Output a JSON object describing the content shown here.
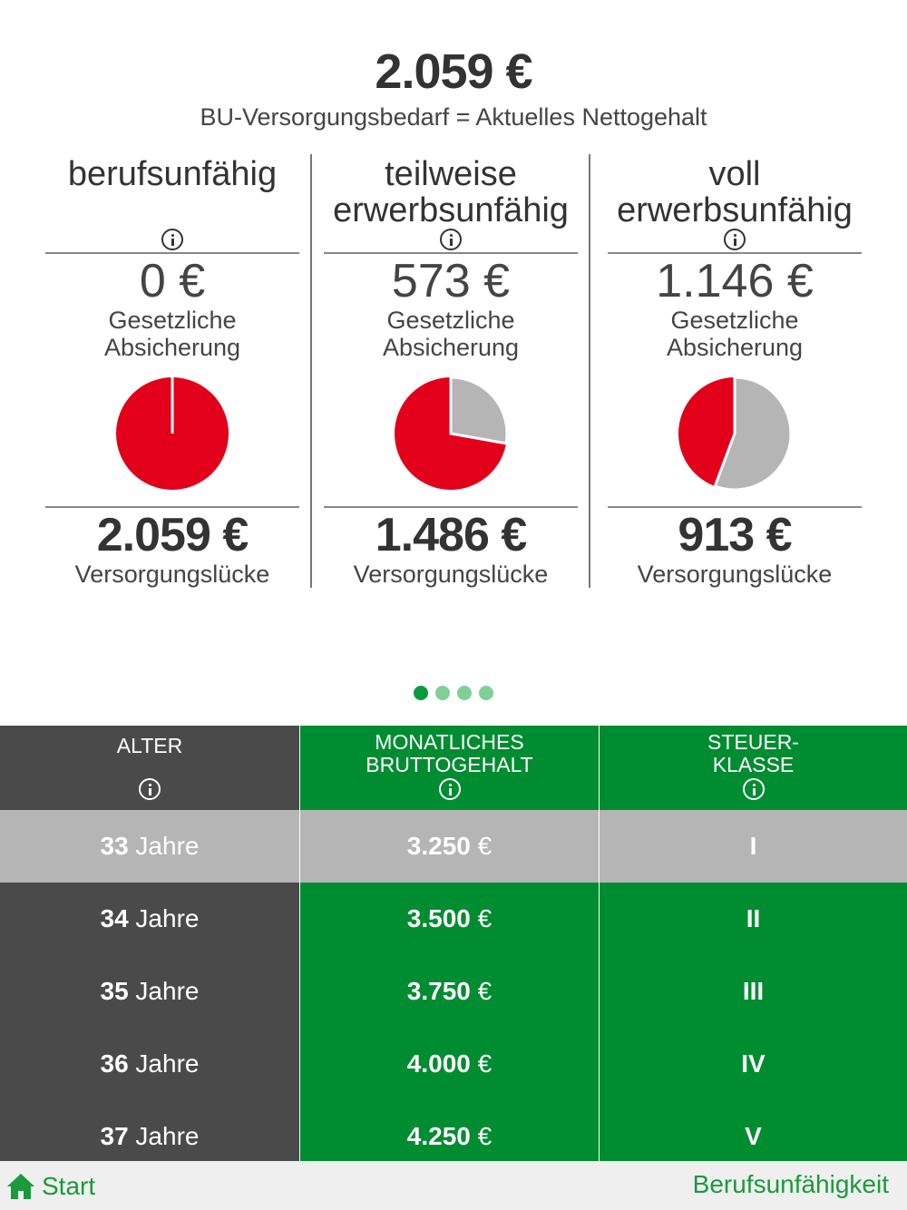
{
  "summary": {
    "total_amount": "2.059 €",
    "total_caption": "BU-Versorgungsbedarf = Aktuelles Nettogehalt"
  },
  "columns": [
    {
      "title": "berufsunfähig",
      "legal_amount": "0 €",
      "legal_caption_1": "Gesetzliche",
      "legal_caption_2": "Absicherung",
      "gap_amount": "2.059 €",
      "gap_caption": "Versorgungslücke",
      "covered_fraction": 0.0
    },
    {
      "title_1": "teilweise",
      "title_2": "erwerbsunfähig",
      "legal_amount": "573 €",
      "legal_caption_1": "Gesetzliche",
      "legal_caption_2": "Absicherung",
      "gap_amount": "1.486 €",
      "gap_caption": "Versorgungslücke",
      "covered_fraction": 0.278
    },
    {
      "title_1": "voll",
      "title_2": "erwerbsunfähig",
      "legal_amount": "1.146 €",
      "legal_caption_1": "Gesetzliche",
      "legal_caption_2": "Absicherung",
      "gap_amount": "913 €",
      "gap_caption": "Versorgungslücke",
      "covered_fraction": 0.557
    }
  ],
  "colors": {
    "gap": "#e2001a",
    "covered": "#b5b5b5",
    "accent_green": "#008c30",
    "dark_gray": "#4a4a4a"
  },
  "pager": {
    "page_count": 4,
    "active_page": 1
  },
  "table": {
    "headers": {
      "age": "ALTER",
      "salary_1": "MONATLICHES",
      "salary_2": "BRUTTOGEHALT",
      "tax_1": "STEUER-",
      "tax_2": "KLASSE"
    },
    "rows": [
      {
        "age_num": "33",
        "age_unit": " Jahre",
        "salary_num": "3.250",
        "salary_unit": " €",
        "tax_class": "I"
      },
      {
        "age_num": "34",
        "age_unit": " Jahre",
        "salary_num": "3.500",
        "salary_unit": " €",
        "tax_class": "II"
      },
      {
        "age_num": "35",
        "age_unit": " Jahre",
        "salary_num": "3.750",
        "salary_unit": " €",
        "tax_class": "III"
      },
      {
        "age_num": "36",
        "age_unit": " Jahre",
        "salary_num": "4.000",
        "salary_unit": " €",
        "tax_class": "IV"
      },
      {
        "age_num": "37",
        "age_unit": " Jahre",
        "salary_num": "4.250",
        "salary_unit": " €",
        "tax_class": "V"
      }
    ]
  },
  "footer": {
    "home_label": "Start",
    "section_label": "Berufsunfähigkeit",
    "home_icon": "home-icon"
  }
}
